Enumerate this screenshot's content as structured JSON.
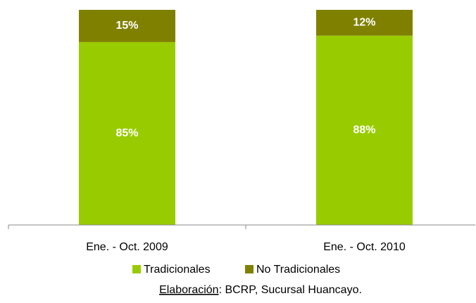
{
  "chart_data": {
    "type": "stacked_bar",
    "categories": [
      "Ene. - Oct. 2009",
      "Ene. - Oct. 2010"
    ],
    "series": [
      {
        "name": "Tradicionales",
        "color": "#99cc00",
        "values": [
          85,
          88
        ],
        "value_labels": [
          "85%",
          "88%"
        ]
      },
      {
        "name": "No Tradicionales",
        "color": "#808000",
        "values": [
          15,
          12
        ],
        "value_labels": [
          "15%",
          "12%"
        ]
      }
    ],
    "ylim": [
      0,
      100
    ],
    "legend": "bottom",
    "source_label": "Elaboración",
    "source_text": ": BCRP, Sucursal Huancayo."
  }
}
